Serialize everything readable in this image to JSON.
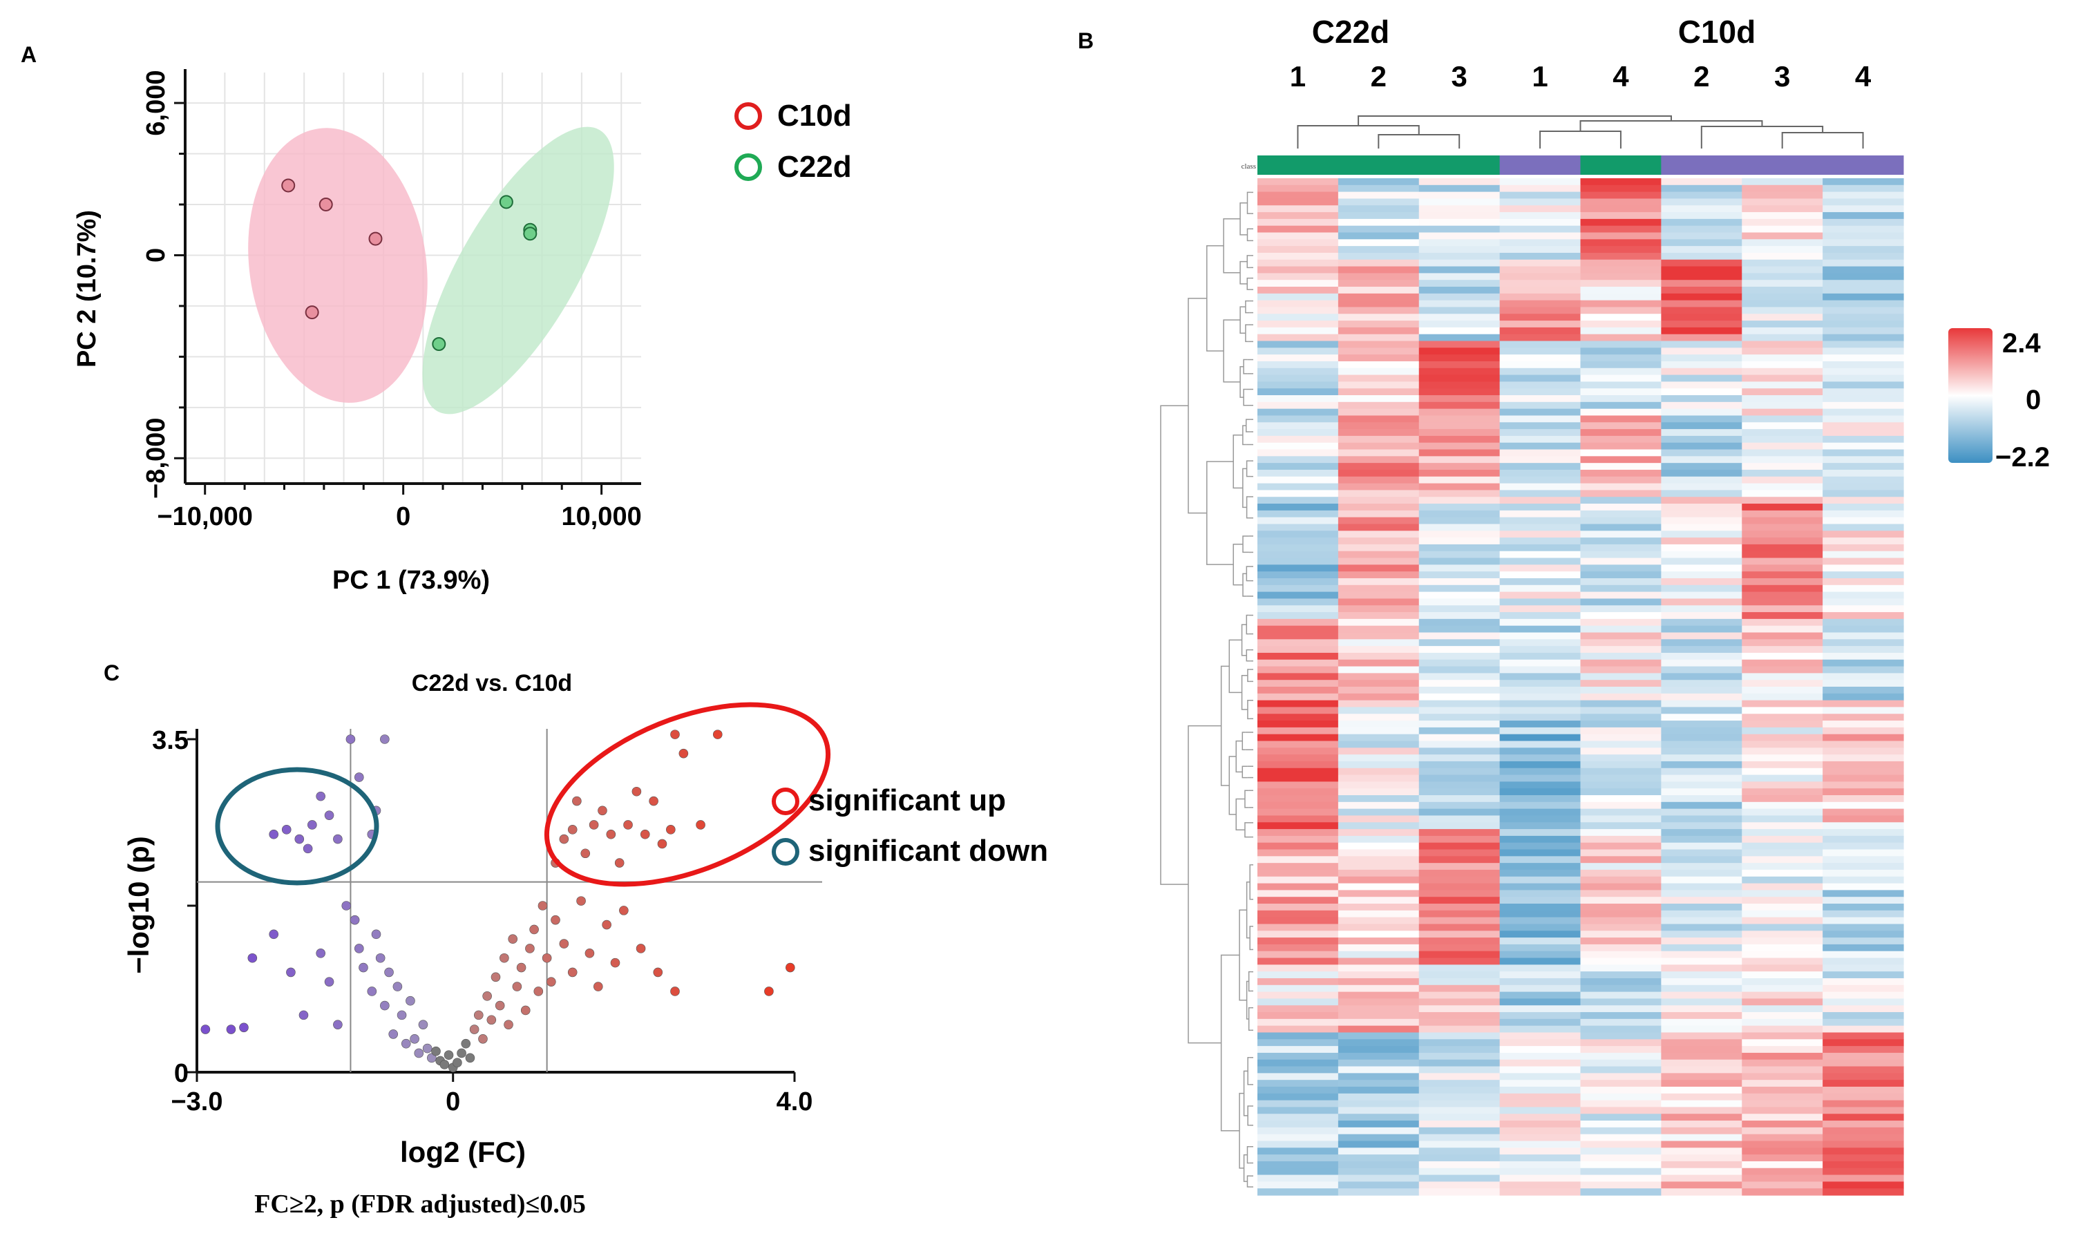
{
  "panels": {
    "A": {
      "label": "A"
    },
    "B": {
      "label": "B"
    },
    "C": {
      "label": "C"
    }
  },
  "colors": {
    "c10d": "#e01e1e",
    "c22d": "#1faa55",
    "c10d_fill": "#f7b8c8",
    "c22d_fill": "#bfe8c9",
    "up": "#e8472e",
    "down": "#7b4fc9",
    "up_circle": "#e81818",
    "down_circle": "#1e6478",
    "class_green": "#129b6a",
    "class_purple": "#7b6fbd",
    "heat_high": "#e8383a",
    "heat_mid": "#ffffff",
    "heat_low": "#3c8fc2"
  },
  "chart_data": [
    {
      "id": "pca",
      "type": "scatter",
      "xlabel": "PC 1 (73.9%)",
      "ylabel": "PC 2 (10.7%)",
      "xlim": [
        -11000,
        12000
      ],
      "ylim": [
        -9000,
        7200
      ],
      "xticks": [
        {
          "v": -10000,
          "label": "−10,000"
        },
        {
          "v": 0,
          "label": "0"
        },
        {
          "v": 10000,
          "label": "10,000"
        }
      ],
      "yticks": [
        {
          "v": 6000,
          "label": "6,000"
        },
        {
          "v": 0,
          "label": "0"
        },
        {
          "v": -8000,
          "label": "−8,000"
        }
      ],
      "legend": [
        {
          "name": "C10d",
          "color": "#e01e1e"
        },
        {
          "name": "C22d",
          "color": "#1faa55"
        }
      ],
      "series": [
        {
          "name": "C10d",
          "points": [
            [
              -5800,
              2750
            ],
            [
              -3900,
              2000
            ],
            [
              -1400,
              650
            ],
            [
              -4600,
              -2250
            ]
          ]
        },
        {
          "name": "C22d",
          "points": [
            [
              5200,
              2100
            ],
            [
              6400,
              1000
            ],
            [
              6400,
              850
            ],
            [
              1800,
              -3500
            ]
          ]
        }
      ]
    },
    {
      "id": "heatmap",
      "type": "heatmap",
      "group_labels": [
        "C22d",
        "C10d"
      ],
      "column_labels": [
        "1",
        "2",
        "3",
        "1",
        "4",
        "2",
        "3",
        "4"
      ],
      "column_classes": [
        "C22d",
        "C22d",
        "C22d",
        "C10d",
        "C22d",
        "C10d",
        "C10d",
        "C10d"
      ],
      "class_label": "class",
      "colorbar": {
        "max": 2.4,
        "mid": 0,
        "min": -2.2,
        "max_label": "2.4",
        "mid_label": "0",
        "min_label": "−2.2"
      },
      "n_rows": 150,
      "seed": 20240613
    },
    {
      "id": "volcano",
      "type": "scatter",
      "title": "C22d vs. C10d",
      "xlabel": "log2 (FC)",
      "ylabel": "−log10 (p)",
      "caption": "FC≥2, p (FDR adjusted)≤0.05",
      "xlim": [
        -3.0,
        4.0
      ],
      "ylim": [
        0,
        3.5
      ],
      "xticks": [
        {
          "v": -3.0,
          "label": "−3.0"
        },
        {
          "v": 0,
          "label": "0"
        },
        {
          "v": 4.0,
          "label": "4.0"
        }
      ],
      "yticks": [
        {
          "v": 3.5,
          "label": "3.5"
        },
        {
          "v": 0,
          "label": "0"
        }
      ],
      "fc_threshold": [
        -1.2,
        1.1
      ],
      "p_threshold": 2.0,
      "legend": [
        {
          "name": "significant up",
          "color": "#e81818"
        },
        {
          "name": "significant down",
          "color": "#1e6478"
        }
      ],
      "points": [
        [
          -2.9,
          0.45
        ],
        [
          -2.6,
          0.45
        ],
        [
          -2.45,
          0.47
        ],
        [
          -2.35,
          1.2
        ],
        [
          -2.1,
          1.45
        ],
        [
          -1.9,
          1.05
        ],
        [
          -1.75,
          0.6
        ],
        [
          -1.55,
          1.25
        ],
        [
          -1.45,
          0.95
        ],
        [
          -1.35,
          0.5
        ],
        [
          -1.25,
          1.75
        ],
        [
          -1.15,
          1.6
        ],
        [
          -1.1,
          1.3
        ],
        [
          -1.05,
          1.1
        ],
        [
          -0.95,
          0.85
        ],
        [
          -0.9,
          1.45
        ],
        [
          -0.85,
          1.2
        ],
        [
          -0.8,
          0.7
        ],
        [
          -0.75,
          1.05
        ],
        [
          -0.7,
          0.4
        ],
        [
          -0.65,
          0.9
        ],
        [
          -0.6,
          0.6
        ],
        [
          -0.55,
          0.3
        ],
        [
          -0.5,
          0.75
        ],
        [
          -0.45,
          0.35
        ],
        [
          -0.4,
          0.2
        ],
        [
          -0.35,
          0.5
        ],
        [
          -0.3,
          0.25
        ],
        [
          -0.25,
          0.15
        ],
        [
          -0.2,
          0.22
        ],
        [
          -0.15,
          0.12
        ],
        [
          -0.1,
          0.08
        ],
        [
          -0.05,
          0.18
        ],
        [
          0,
          0.05
        ],
        [
          0.05,
          0.1
        ],
        [
          0.1,
          0.2
        ],
        [
          0.15,
          0.3
        ],
        [
          0.2,
          0.15
        ],
        [
          0.25,
          0.45
        ],
        [
          0.3,
          0.6
        ],
        [
          0.35,
          0.35
        ],
        [
          0.4,
          0.8
        ],
        [
          0.45,
          0.55
        ],
        [
          0.5,
          1.0
        ],
        [
          0.55,
          0.7
        ],
        [
          0.6,
          1.2
        ],
        [
          0.65,
          0.5
        ],
        [
          0.7,
          1.4
        ],
        [
          0.75,
          0.9
        ],
        [
          0.8,
          1.1
        ],
        [
          0.85,
          0.65
        ],
        [
          0.9,
          1.3
        ],
        [
          0.95,
          1.5
        ],
        [
          1.0,
          0.85
        ],
        [
          1.05,
          1.75
        ],
        [
          1.1,
          1.2
        ],
        [
          1.15,
          0.95
        ],
        [
          1.2,
          1.6
        ],
        [
          1.3,
          1.35
        ],
        [
          1.4,
          1.05
        ],
        [
          1.5,
          1.8
        ],
        [
          1.6,
          1.25
        ],
        [
          1.7,
          0.9
        ],
        [
          1.8,
          1.55
        ],
        [
          1.9,
          1.15
        ],
        [
          2.0,
          1.7
        ],
        [
          2.2,
          1.3
        ],
        [
          2.4,
          1.05
        ],
        [
          2.6,
          0.85
        ],
        [
          3.7,
          0.85
        ],
        [
          3.95,
          1.1
        ],
        [
          -2.1,
          2.5
        ],
        [
          -1.95,
          2.55
        ],
        [
          -1.8,
          2.45
        ],
        [
          -1.7,
          2.35
        ],
        [
          -1.65,
          2.6
        ],
        [
          -1.55,
          2.9
        ],
        [
          -1.45,
          2.7
        ],
        [
          -1.35,
          2.45
        ],
        [
          -1.2,
          3.5
        ],
        [
          -1.1,
          3.1
        ],
        [
          -0.95,
          2.5
        ],
        [
          -0.9,
          2.75
        ],
        [
          -0.8,
          3.5
        ],
        [
          1.2,
          2.2
        ],
        [
          1.3,
          2.45
        ],
        [
          1.4,
          2.55
        ],
        [
          1.45,
          2.85
        ],
        [
          1.55,
          2.3
        ],
        [
          1.65,
          2.6
        ],
        [
          1.75,
          2.75
        ],
        [
          1.85,
          2.5
        ],
        [
          1.95,
          2.2
        ],
        [
          2.05,
          2.6
        ],
        [
          2.15,
          2.95
        ],
        [
          2.25,
          2.5
        ],
        [
          2.35,
          2.85
        ],
        [
          2.45,
          2.4
        ],
        [
          2.55,
          2.55
        ],
        [
          2.7,
          3.35
        ],
        [
          2.9,
          2.6
        ],
        [
          3.1,
          3.55
        ],
        [
          2.6,
          3.55
        ]
      ]
    }
  ]
}
